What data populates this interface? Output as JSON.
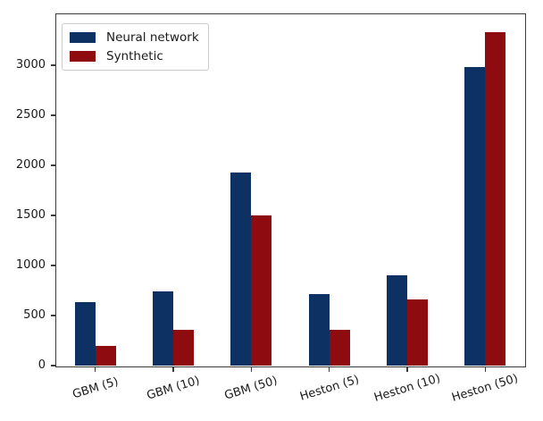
{
  "figure": {
    "background_color": "#ffffff",
    "frame_color": "#3a3a3a",
    "text_color": "#1a1a1a"
  },
  "chart_data": {
    "type": "bar",
    "title": "",
    "xlabel": "",
    "ylabel": "",
    "categories": [
      "GBM (5)",
      "GBM (10)",
      "GBM (50)",
      "Heston (5)",
      "Heston (10)",
      "Heston (50)"
    ],
    "series": [
      {
        "name": "Neural network",
        "color": "#0d3162",
        "values": [
          635,
          740,
          1930,
          715,
          900,
          2980
        ]
      },
      {
        "name": "Synthetic",
        "color": "#8e0c10",
        "values": [
          195,
          360,
          1500,
          360,
          660,
          3330
        ]
      }
    ],
    "y_ticks": [
      0,
      500,
      1000,
      1500,
      2000,
      2500,
      3000
    ],
    "ylim": [
      0,
      3510
    ],
    "grid": false,
    "legend_position": "upper-left",
    "x_tick_rotation_deg": 17
  }
}
